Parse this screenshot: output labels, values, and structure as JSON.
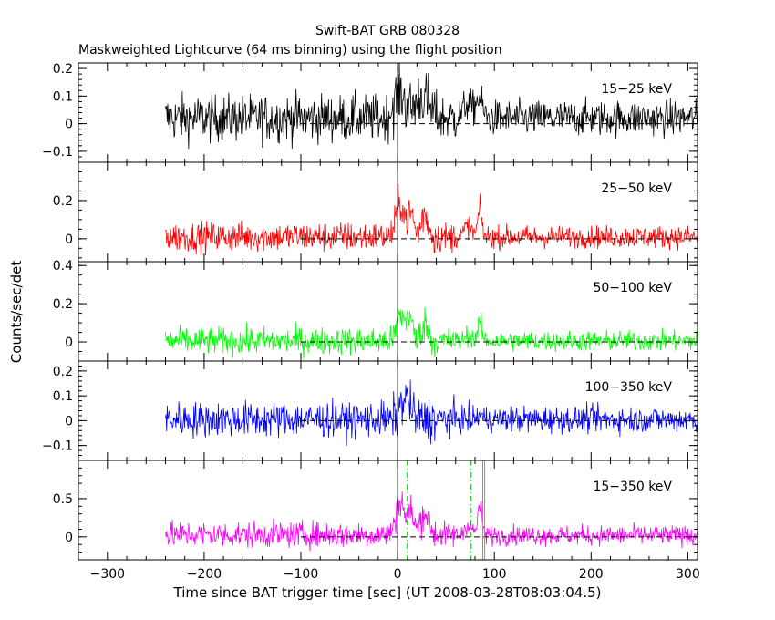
{
  "chart_data": {
    "type": "line",
    "title": "Swift-BAT GRB 080328",
    "subtitle": "Maskweighted Lightcurve (64 ms binning) using the flight position",
    "xlabel": "Time since BAT trigger time [sec] (UT 2008-03-28T08:03:04.5)",
    "ylabel": "Counts/sec/det",
    "xlim": [
      -330,
      310
    ],
    "x_ticks": [
      -300,
      -200,
      -100,
      0,
      100,
      200,
      300
    ],
    "x_tick_labels": [
      "−300",
      "−200",
      "−100",
      "0",
      "100",
      "200",
      "300"
    ],
    "data_x_range": [
      -240,
      310
    ],
    "zero_line_x_range": [
      -100,
      310
    ],
    "markers": {
      "trigger_time": 0,
      "green_dashdot": [
        10,
        76
      ],
      "orange_solid": [
        88,
        90
      ]
    },
    "panels": [
      {
        "name": "15−25 keV",
        "color": "#000000",
        "ylim": [
          -0.14,
          0.22
        ],
        "y_ticks": [
          -0.1,
          0,
          0.1,
          0.2
        ],
        "y_tick_labels": [
          "−0.1",
          "0",
          "0.1",
          "0.2"
        ],
        "noise": 0.06,
        "baseline_pre": 0.02,
        "baseline_post": 0.02,
        "peaks": [
          {
            "t": 2,
            "h": 0.09,
            "w": 8
          },
          {
            "t": 25,
            "h": 0.08,
            "w": 10
          },
          {
            "t": 72,
            "h": 0.05,
            "w": 6
          },
          {
            "t": 84,
            "h": 0.07,
            "w": 5
          }
        ]
      },
      {
        "name": "25−50 keV",
        "color": "#ff0000",
        "ylim": [
          -0.12,
          0.4
        ],
        "y_ticks": [
          0,
          0.2
        ],
        "y_tick_labels": [
          "0",
          "0.2"
        ],
        "noise": 0.055,
        "baseline_pre": 0.01,
        "baseline_post": 0.01,
        "peaks": [
          {
            "t": 3,
            "h": 0.18,
            "w": 6
          },
          {
            "t": 14,
            "h": 0.12,
            "w": 4
          },
          {
            "t": 28,
            "h": 0.12,
            "w": 5
          },
          {
            "t": 73,
            "h": 0.06,
            "w": 5
          },
          {
            "t": 85,
            "h": 0.14,
            "w": 3
          }
        ]
      },
      {
        "name": "50−100 keV",
        "color": "#00ff00",
        "ylim": [
          -0.1,
          0.42
        ],
        "y_ticks": [
          0,
          0.2,
          0.4
        ],
        "y_tick_labels": [
          "0",
          "0.2",
          "0.4"
        ],
        "noise": 0.05,
        "baseline_pre": 0.005,
        "baseline_post": 0.005,
        "peaks": [
          {
            "t": 3,
            "h": 0.14,
            "w": 5
          },
          {
            "t": 12,
            "h": 0.14,
            "w": 4
          },
          {
            "t": 28,
            "h": 0.09,
            "w": 5
          },
          {
            "t": 73,
            "h": 0.03,
            "w": 5
          },
          {
            "t": 85,
            "h": 0.1,
            "w": 3
          }
        ]
      },
      {
        "name": "100−350 keV",
        "color": "#0000ff",
        "ylim": [
          -0.16,
          0.24
        ],
        "y_ticks": [
          -0.1,
          0,
          0.1,
          0.2
        ],
        "y_tick_labels": [
          "−0.1",
          "0",
          "0.1",
          "0.2"
        ],
        "noise": 0.05,
        "baseline_pre": 0.005,
        "baseline_post": 0.005,
        "peaks": [
          {
            "t": 6,
            "h": 0.07,
            "w": 6
          },
          {
            "t": 12,
            "h": 0.05,
            "w": 4
          },
          {
            "t": 85,
            "h": 0.02,
            "w": 3
          }
        ]
      },
      {
        "name": "15−350 keV",
        "color": "#ff00ff",
        "ylim": [
          -0.3,
          1.0
        ],
        "y_ticks": [
          0,
          0.5
        ],
        "y_tick_labels": [
          "0",
          "0.5"
        ],
        "noise": 0.12,
        "baseline_pre": 0.03,
        "baseline_post": 0.02,
        "peaks": [
          {
            "t": 3,
            "h": 0.45,
            "w": 6
          },
          {
            "t": 14,
            "h": 0.3,
            "w": 4
          },
          {
            "t": 28,
            "h": 0.3,
            "w": 6
          },
          {
            "t": 73,
            "h": 0.15,
            "w": 5
          },
          {
            "t": 85,
            "h": 0.4,
            "w": 3
          }
        ]
      }
    ]
  }
}
